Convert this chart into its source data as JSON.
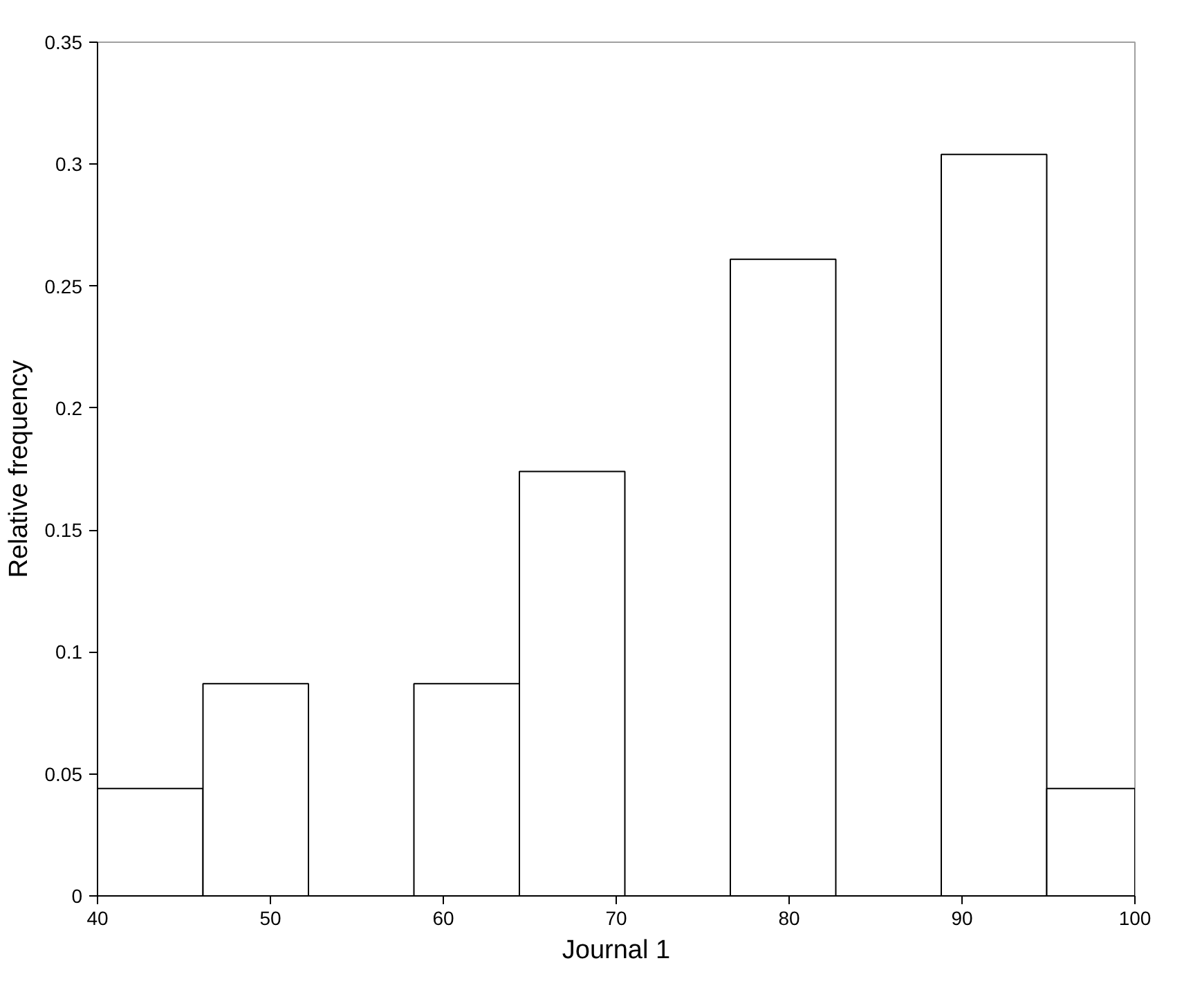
{
  "chart_data": {
    "type": "histogram",
    "xlabel": "Journal 1",
    "ylabel": "Relative frequency",
    "bins": [
      40,
      46.1,
      52.2,
      58.3,
      64.4,
      70.5,
      76.6,
      82.7,
      88.8,
      94.9,
      100
    ],
    "values": [
      0.044,
      0.087,
      0,
      0.087,
      0.174,
      0,
      0.261,
      0,
      0.304,
      0.044
    ],
    "color": "#000000",
    "xlim": [
      40,
      100
    ],
    "xticks": [
      40,
      50,
      60,
      70,
      80,
      90,
      100
    ],
    "ylim": [
      0,
      0.35
    ],
    "yticks": [
      0,
      0.05,
      0.1,
      0.15,
      0.2,
      0.25,
      0.3,
      0.35
    ],
    "grid": false
  }
}
